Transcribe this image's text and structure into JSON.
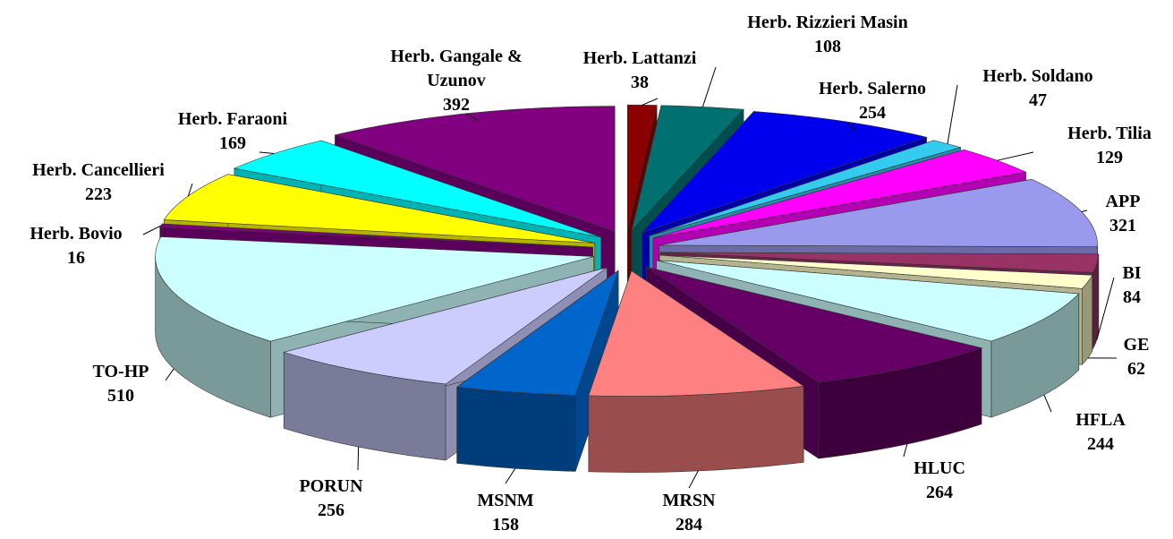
{
  "chart_data": {
    "type": "pie",
    "categories": [
      "Herb. Lattanzi",
      "Herb. Rizzieri Masin",
      "Herb. Salerno",
      "Herb. Soldano",
      "Herb. Tilia",
      "APP",
      "BI",
      "GE",
      "HFLA",
      "HLUC",
      "MRSN",
      "MSNM",
      "PORUN",
      "TO-HP",
      "Herb. Bovio",
      "Herb. Cancellieri",
      "Herb. Faraoni",
      "Herb. Gangale & Uzunov"
    ],
    "values": [
      38,
      108,
      254,
      47,
      129,
      321,
      84,
      62,
      244,
      264,
      284,
      158,
      256,
      510,
      16,
      223,
      169,
      392
    ],
    "colors": [
      "#8b0000",
      "#007070",
      "#0000ee",
      "#33ccee",
      "#ff00ff",
      "#9999ee",
      "#993366",
      "#ffffcc",
      "#ccffff",
      "#660066",
      "#ff8080",
      "#0066cc",
      "#ccccff",
      "#ccffff",
      "#800080",
      "#ffff00",
      "#00ffff",
      "#800080"
    ]
  }
}
